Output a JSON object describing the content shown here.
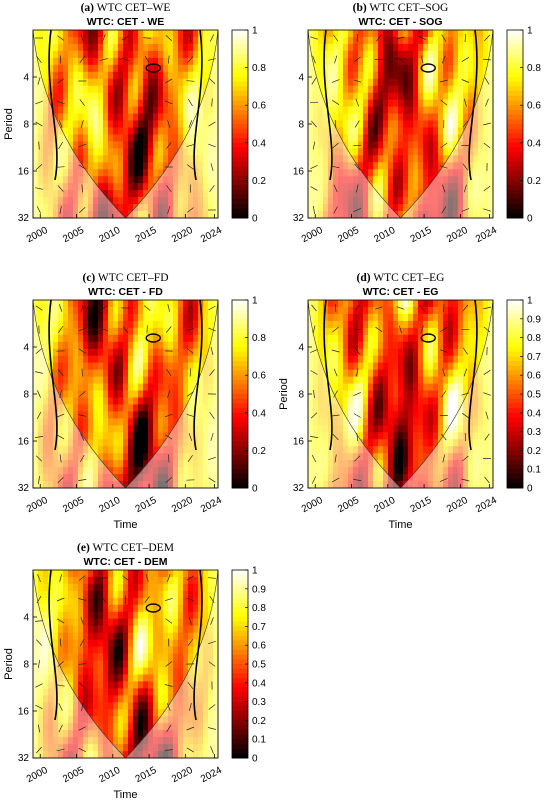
{
  "panels": [
    {
      "id": "a",
      "caption_letter": "(a)",
      "caption_text": " WTC CET–WE",
      "subtitle": "WTC: CET - WE",
      "xlabel": "",
      "ylabel": "Period",
      "xticks": [
        "2000",
        "2005",
        "2010",
        "2015",
        "2020",
        "2024"
      ],
      "yticks": [
        "4",
        "8",
        "16",
        "32"
      ],
      "cticks": [
        "0",
        "0.2",
        "0.4",
        "0.6",
        "0.8",
        "1"
      ]
    },
    {
      "id": "b",
      "caption_letter": "(b)",
      "caption_text": " WTC CET–SOG",
      "subtitle": "WTC: CET - SOG",
      "xlabel": "",
      "ylabel": "",
      "xticks": [
        "2000",
        "2005",
        "2010",
        "2015",
        "2020",
        "2024"
      ],
      "yticks": [
        "4",
        "8",
        "16",
        "32"
      ],
      "cticks": [
        "0",
        "0.2",
        "0.4",
        "0.6",
        "0.8",
        "1"
      ]
    },
    {
      "id": "c",
      "caption_letter": "(c)",
      "caption_text": " WTC CET–FD",
      "subtitle": "WTC: CET - FD",
      "xlabel": "Time",
      "ylabel": "",
      "xticks": [
        "2000",
        "2005",
        "2010",
        "2015",
        "2020",
        "2024"
      ],
      "yticks": [
        "4",
        "8",
        "16",
        "32"
      ],
      "cticks": [
        "0",
        "0.2",
        "0.4",
        "0.6",
        "0.8",
        "1"
      ]
    },
    {
      "id": "d",
      "caption_letter": "(d)",
      "caption_text": " WTC CET–EG",
      "subtitle": "WTC: CET - EG",
      "xlabel": "Time",
      "ylabel": "Period",
      "xticks": [
        "2000",
        "2005",
        "2010",
        "2015",
        "2020",
        "2024"
      ],
      "yticks": [
        "4",
        "8",
        "16",
        "32"
      ],
      "cticks": [
        "0",
        "0.1",
        "0.2",
        "0.3",
        "0.4",
        "0.5",
        "0.6",
        "0.7",
        "0.8",
        "0.9",
        "1"
      ]
    },
    {
      "id": "e",
      "caption_letter": "(e)",
      "caption_text": " WTC CET–DEM",
      "subtitle": "WTC: CET - DEM",
      "xlabel": "Time",
      "ylabel": "Period",
      "xticks": [
        "2000",
        "2005",
        "2010",
        "2015",
        "2020",
        "2024"
      ],
      "yticks": [
        "4",
        "8",
        "16",
        "32"
      ],
      "cticks": [
        "0",
        "0.1",
        "0.2",
        "0.3",
        "0.4",
        "0.5",
        "0.6",
        "0.7",
        "0.8",
        "0.9",
        "1"
      ]
    }
  ],
  "chart_data": [
    {
      "type": "heatmap",
      "title": "WTC: CET - WE",
      "ylabel": "Period",
      "xlim": [
        1999,
        2024.5
      ],
      "ylim": [
        2,
        32
      ],
      "yscale": "log2",
      "clim": [
        0,
        1
      ],
      "colormap": "hot"
    },
    {
      "type": "heatmap",
      "title": "WTC: CET - SOG",
      "xlim": [
        1999,
        2024.5
      ],
      "ylim": [
        2,
        32
      ],
      "yscale": "log2",
      "clim": [
        0,
        1
      ],
      "colormap": "hot"
    },
    {
      "type": "heatmap",
      "title": "WTC: CET - FD",
      "xlabel": "Time",
      "xlim": [
        1999,
        2024.5
      ],
      "ylim": [
        2,
        32
      ],
      "yscale": "log2",
      "clim": [
        0,
        1
      ],
      "colormap": "hot"
    },
    {
      "type": "heatmap",
      "title": "WTC: CET - EG",
      "xlabel": "Time",
      "ylabel": "Period",
      "xlim": [
        1999,
        2024.5
      ],
      "ylim": [
        2,
        32
      ],
      "yscale": "log2",
      "clim": [
        0,
        1
      ],
      "colormap": "hot"
    },
    {
      "type": "heatmap",
      "title": "WTC: CET - DEM",
      "xlabel": "Time",
      "ylabel": "Period",
      "xlim": [
        1999,
        2024.5
      ],
      "ylim": [
        2,
        32
      ],
      "yscale": "log2",
      "clim": [
        0,
        1
      ],
      "colormap": "hot"
    }
  ]
}
